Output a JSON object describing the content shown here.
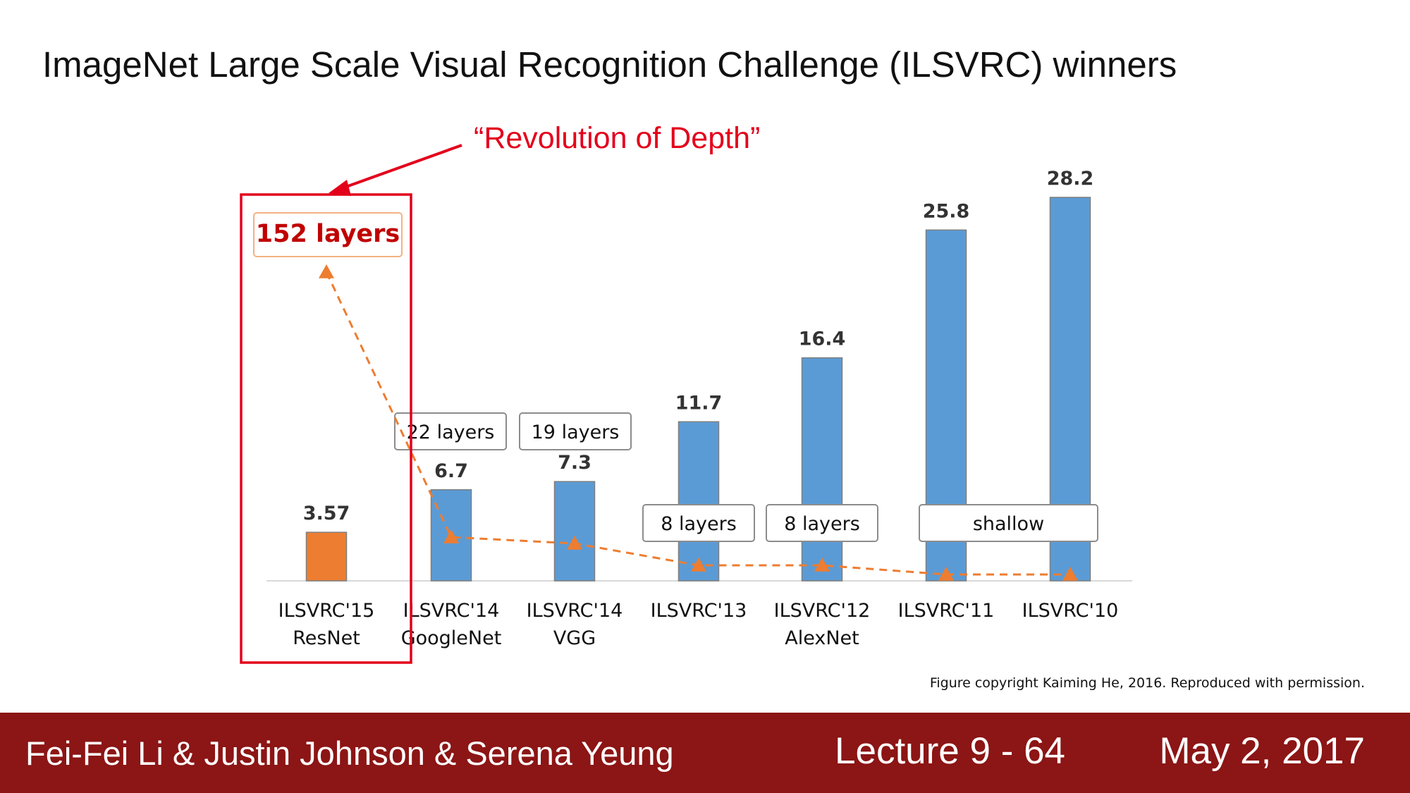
{
  "slide": {
    "title": "ImageNet Large Scale Visual Recognition Challenge (ILSVRC) winners",
    "annotation": "“Revolution of Depth”",
    "copyright": "Figure copyright Kaiming He, 2016. Reproduced with permission."
  },
  "footer": {
    "authors": "Fei-Fei Li & Justin Johnson & Serena Yeung",
    "lecture": "Lecture 9 - 64",
    "date": "May 2, 2017"
  },
  "colors": {
    "bar_default": "#5b9bd5",
    "bar_highlight": "#ed7d31",
    "trend_line": "#ed7d31",
    "highlight_box": "#e3001b",
    "footer_bg": "#8c1515"
  },
  "chart_data": {
    "type": "bar",
    "title": "",
    "xlabel": "",
    "ylabel": "",
    "ylim": [
      0,
      30
    ],
    "grid": false,
    "categories": [
      {
        "year": "ILSVRC'15",
        "model": "ResNet"
      },
      {
        "year": "ILSVRC'14",
        "model": "GoogleNet"
      },
      {
        "year": "ILSVRC'14",
        "model": "VGG"
      },
      {
        "year": "ILSVRC'13",
        "model": ""
      },
      {
        "year": "ILSVRC'12",
        "model": "AlexNet"
      },
      {
        "year": "ILSVRC'11",
        "model": ""
      },
      {
        "year": "ILSVRC'10",
        "model": ""
      }
    ],
    "values": [
      3.57,
      6.7,
      7.3,
      11.7,
      16.4,
      25.8,
      28.2
    ],
    "value_labels": [
      "3.57",
      "6.7",
      "7.3",
      "11.7",
      "16.4",
      "25.8",
      "28.2"
    ],
    "highlight_index": 0,
    "layer_labels": [
      {
        "text": "152 layers",
        "indices": [
          0
        ]
      },
      {
        "text": "22 layers",
        "indices": [
          1
        ]
      },
      {
        "text": "19 layers",
        "indices": [
          2
        ]
      },
      {
        "text": "8 layers",
        "indices": [
          3
        ]
      },
      {
        "text": "8 layers",
        "indices": [
          4
        ]
      },
      {
        "text": "shallow",
        "indices": [
          5,
          6
        ]
      }
    ],
    "depth_trend": {
      "type": "dashed-line",
      "marker": "triangle",
      "depths": [
        152,
        22,
        19,
        8,
        8,
        0,
        0
      ]
    }
  }
}
